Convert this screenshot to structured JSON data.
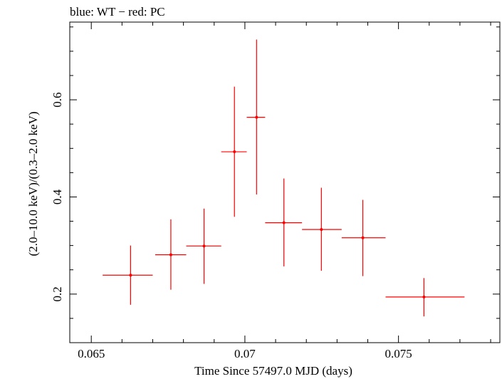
{
  "header": {
    "note": "blue: WT − red: PC"
  },
  "chart_data": {
    "type": "scatter",
    "title": "",
    "xlabel": "Time Since 57497.0 MJD (days)",
    "ylabel": "(2.0–10.0 keV)/(0.3–2.0 keV)",
    "xlim": [
      0.0643,
      0.0783
    ],
    "ylim": [
      0.1,
      0.76
    ],
    "x_ticks": [
      0.065,
      0.07,
      0.075
    ],
    "x_tick_labels": [
      "0.065",
      "0.07",
      "0.075"
    ],
    "y_ticks": [
      0.2,
      0.4,
      0.6
    ],
    "y_tick_labels": [
      "0.2",
      "0.4",
      "0.6"
    ],
    "grid": false,
    "legend": "none",
    "series": [
      {
        "color": "#ff0000",
        "points": [
          {
            "x": 0.06628,
            "xerr_lo": 0.06537,
            "xerr_hi": 0.067,
            "y": 0.239,
            "yerr_lo": 0.178,
            "yerr_hi": 0.3
          },
          {
            "x": 0.06759,
            "xerr_lo": 0.06708,
            "xerr_hi": 0.06809,
            "y": 0.281,
            "yerr_lo": 0.209,
            "yerr_hi": 0.354
          },
          {
            "x": 0.06867,
            "xerr_lo": 0.06809,
            "xerr_hi": 0.06923,
            "y": 0.299,
            "yerr_lo": 0.221,
            "yerr_hi": 0.376
          },
          {
            "x": 0.06966,
            "xerr_lo": 0.06923,
            "xerr_hi": 0.07006,
            "y": 0.493,
            "yerr_lo": 0.359,
            "yerr_hi": 0.627
          },
          {
            "x": 0.07038,
            "xerr_lo": 0.07006,
            "xerr_hi": 0.07066,
            "y": 0.564,
            "yerr_lo": 0.405,
            "yerr_hi": 0.724
          },
          {
            "x": 0.07127,
            "xerr_lo": 0.07066,
            "xerr_hi": 0.07186,
            "y": 0.347,
            "yerr_lo": 0.257,
            "yerr_hi": 0.438
          },
          {
            "x": 0.07249,
            "xerr_lo": 0.07186,
            "xerr_hi": 0.07315,
            "y": 0.333,
            "yerr_lo": 0.248,
            "yerr_hi": 0.419
          },
          {
            "x": 0.07384,
            "xerr_lo": 0.07315,
            "xerr_hi": 0.07458,
            "y": 0.316,
            "yerr_lo": 0.237,
            "yerr_hi": 0.394
          },
          {
            "x": 0.07583,
            "xerr_lo": 0.07458,
            "xerr_hi": 0.07715,
            "y": 0.194,
            "yerr_lo": 0.154,
            "yerr_hi": 0.233
          }
        ]
      }
    ]
  }
}
